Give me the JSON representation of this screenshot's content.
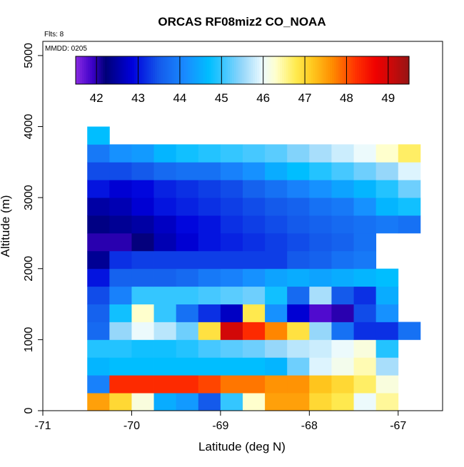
{
  "chart_data": {
    "type": "heatmap",
    "title": "ORCAS RF08miz2 CO_NOAA",
    "note_flights": "Flts: 8",
    "note_date": "MMDD: 0205",
    "xlabel": "Latitude (deg N)",
    "ylabel": "Altitude (m)",
    "xlim": [
      -71,
      -66.5
    ],
    "ylim": [
      0,
      5200
    ],
    "x_ticks": [
      -71,
      -70,
      -69,
      -68,
      -67
    ],
    "y_ticks": [
      0,
      1000,
      2000,
      3000,
      4000,
      5000
    ],
    "colorbar": {
      "min": 41.5,
      "max": 49.5,
      "ticks": [
        42,
        43,
        44,
        45,
        46,
        47,
        48,
        49
      ]
    },
    "cell_lat_step": 0.25,
    "cell_alt_step": 250,
    "lat_start": -70.5,
    "rows": [
      {
        "alt": 0,
        "values": [
          47.5,
          47.0,
          46.2,
          44.5,
          44.3,
          43.5,
          45.0,
          46.3,
          47.5,
          47.5,
          47.0,
          46.8,
          46.0,
          46.5
        ]
      },
      {
        "alt": 250,
        "values": [
          44.0,
          48.3,
          48.3,
          48.3,
          48.3,
          48.1,
          47.8,
          47.8,
          47.6,
          47.6,
          47.2,
          47.0,
          46.7,
          46.2
        ]
      },
      {
        "alt": 500,
        "values": [
          44.6,
          44.7,
          44.7,
          44.7,
          44.7,
          44.7,
          44.7,
          44.7,
          44.6,
          45.3,
          45.9,
          46.1,
          46.4,
          45.6
        ]
      },
      {
        "alt": 750,
        "values": [
          44.9,
          44.9,
          44.8,
          44.8,
          44.9,
          45.1,
          45.2,
          45.3,
          45.5,
          45.7,
          45.8,
          46.0,
          46.2,
          44.9
        ]
      },
      {
        "alt": 1000,
        "values": [
          43.7,
          45.5,
          46.0,
          45.7,
          45.3,
          46.9,
          49.0,
          48.3,
          47.7,
          46.9,
          45.5,
          43.8,
          43.2,
          43.2,
          43.8
        ]
      },
      {
        "alt": 1250,
        "values": [
          43.6,
          44.8,
          46.3,
          45.0,
          43.8,
          43.2,
          42.7,
          46.8,
          44.2,
          42.8,
          41.8,
          42.0,
          43.4,
          44.2
        ]
      },
      {
        "alt": 1500,
        "values": [
          43.4,
          44.0,
          45.0,
          45.0,
          45.0,
          45.1,
          45.2,
          45.3,
          44.8,
          43.7,
          45.6,
          43.5,
          43.2,
          44.5
        ]
      },
      {
        "alt": 1750,
        "values": [
          43.0,
          43.6,
          43.6,
          43.6,
          43.7,
          43.9,
          44.0,
          44.2,
          44.4,
          44.5,
          44.4,
          44.5,
          44.6,
          44.7
        ]
      },
      {
        "alt": 2000,
        "values": [
          42.4,
          43.2,
          43.3,
          43.3,
          43.3,
          43.3,
          43.3,
          43.3,
          43.3,
          43.5,
          43.6,
          43.8,
          43.9
        ]
      },
      {
        "alt": 2250,
        "values": [
          42.0,
          42.0,
          42.2,
          42.6,
          42.8,
          43.0,
          43.1,
          43.2,
          43.3,
          43.4,
          43.5,
          43.6,
          43.8
        ]
      },
      {
        "alt": 2500,
        "values": [
          42.3,
          42.4,
          42.5,
          42.7,
          42.9,
          43.0,
          43.2,
          43.3,
          43.4,
          43.5,
          43.6,
          43.7,
          43.8,
          43.9,
          43.8
        ]
      },
      {
        "alt": 2750,
        "values": [
          42.5,
          42.6,
          42.8,
          43.0,
          43.1,
          43.2,
          43.3,
          43.4,
          43.5,
          43.6,
          43.8,
          43.9,
          44.2,
          44.6,
          44.8
        ]
      },
      {
        "alt": 3000,
        "values": [
          43.0,
          42.8,
          42.9,
          43.1,
          43.2,
          43.3,
          43.4,
          43.6,
          43.8,
          44.0,
          44.2,
          44.4,
          44.6,
          44.9,
          45.3
        ]
      },
      {
        "alt": 3250,
        "values": [
          43.4,
          43.4,
          43.5,
          43.7,
          43.8,
          43.8,
          44.0,
          44.2,
          44.5,
          44.7,
          44.9,
          45.1,
          45.3,
          45.5,
          45.9
        ]
      },
      {
        "alt": 3500,
        "values": [
          43.9,
          44.2,
          44.3,
          44.6,
          44.8,
          44.9,
          45.0,
          45.1,
          45.2,
          45.4,
          45.6,
          45.8,
          46.0,
          46.3,
          46.7
        ]
      },
      {
        "alt": 3750,
        "values": [
          44.7
        ]
      }
    ]
  }
}
